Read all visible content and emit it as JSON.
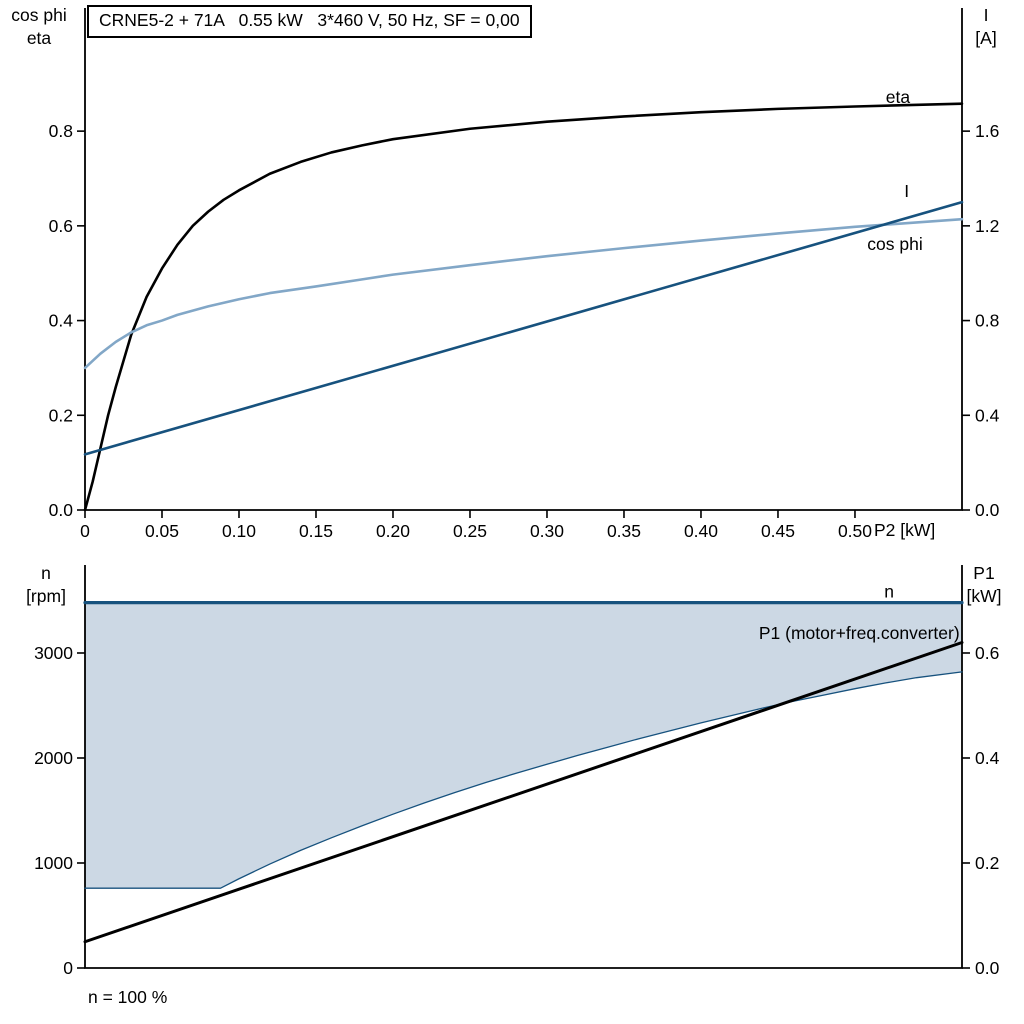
{
  "title": "CRNE5-2 + 71A   0.55 kW   3*460 V, 50 Hz, SF = 0,00",
  "footer_note": "n = 100 %",
  "colors": {
    "black": "#000000",
    "dark_blue": "#17527e",
    "light_blue": "#82a7c7",
    "band_fill": "#ccd8e4"
  },
  "labels": {
    "top_left_line1": "cos phi",
    "top_left_line2": "eta",
    "top_right_line1": "I",
    "top_right_line2": "[A]",
    "bottom_left_line1": "n",
    "bottom_left_line2": "[rpm]",
    "bottom_right_line1": "P1",
    "bottom_right_line2": "[kW]",
    "x_axis_label": "P2 [kW]"
  },
  "chart_data": [
    {
      "type": "line",
      "title": "Motor efficiency, power factor and current vs shaft power P2",
      "grid": false,
      "x_axis": {
        "label": "P2 [kW]",
        "range": [
          0,
          0.5695
        ],
        "ticks": [
          {
            "v": 0,
            "label": "0"
          },
          {
            "v": 0.05,
            "label": "0.05"
          },
          {
            "v": 0.1,
            "label": "0.10"
          },
          {
            "v": 0.15,
            "label": "0.15"
          },
          {
            "v": 0.2,
            "label": "0.20"
          },
          {
            "v": 0.25,
            "label": "0.25"
          },
          {
            "v": 0.3,
            "label": "0.30"
          },
          {
            "v": 0.35,
            "label": "0.35"
          },
          {
            "v": 0.4,
            "label": "0.40"
          },
          {
            "v": 0.45,
            "label": "0.45"
          },
          {
            "v": 0.5,
            "label": "0.50"
          }
        ]
      },
      "left_axis": {
        "label": "cos phi / eta",
        "range": [
          0,
          1.06
        ],
        "ticks": [
          {
            "v": 0.0,
            "label": "0.0"
          },
          {
            "v": 0.2,
            "label": "0.2"
          },
          {
            "v": 0.4,
            "label": "0.4"
          },
          {
            "v": 0.6,
            "label": "0.6"
          },
          {
            "v": 0.8,
            "label": "0.8"
          }
        ]
      },
      "right_axis": {
        "label": "I [A]",
        "range": [
          0,
          2.12
        ],
        "ticks": [
          {
            "v": 0.0,
            "label": "0.0"
          },
          {
            "v": 0.4,
            "label": "0.4"
          },
          {
            "v": 0.8,
            "label": "0.8"
          },
          {
            "v": 1.2,
            "label": "1.2"
          },
          {
            "v": 1.6,
            "label": "1.6"
          }
        ]
      },
      "series": [
        {
          "id": "eta",
          "name": "eta",
          "axis": "left",
          "color": "#000000",
          "width": 2.6,
          "label": {
            "x": 0.52,
            "y": 0.859,
            "anchor": "start"
          },
          "points": [
            [
              0,
              0
            ],
            [
              0.005,
              0.06
            ],
            [
              0.01,
              0.13
            ],
            [
              0.015,
              0.2
            ],
            [
              0.02,
              0.26
            ],
            [
              0.03,
              0.37
            ],
            [
              0.04,
              0.45
            ],
            [
              0.05,
              0.51
            ],
            [
              0.06,
              0.56
            ],
            [
              0.07,
              0.6
            ],
            [
              0.08,
              0.63
            ],
            [
              0.09,
              0.655
            ],
            [
              0.1,
              0.675
            ],
            [
              0.12,
              0.71
            ],
            [
              0.14,
              0.735
            ],
            [
              0.16,
              0.755
            ],
            [
              0.18,
              0.77
            ],
            [
              0.2,
              0.783
            ],
            [
              0.25,
              0.805
            ],
            [
              0.3,
              0.82
            ],
            [
              0.35,
              0.831
            ],
            [
              0.4,
              0.84
            ],
            [
              0.45,
              0.847
            ],
            [
              0.5,
              0.852
            ],
            [
              0.5695,
              0.858
            ]
          ]
        },
        {
          "id": "cos-phi",
          "name": "cos phi",
          "axis": "left",
          "color": "#82a7c7",
          "width": 2.6,
          "label": {
            "x": 0.508,
            "y": 0.549,
            "anchor": "start"
          },
          "points": [
            [
              0,
              0.3
            ],
            [
              0.01,
              0.33
            ],
            [
              0.02,
              0.355
            ],
            [
              0.03,
              0.375
            ],
            [
              0.04,
              0.39
            ],
            [
              0.05,
              0.4
            ],
            [
              0.06,
              0.412
            ],
            [
              0.08,
              0.43
            ],
            [
              0.1,
              0.445
            ],
            [
              0.12,
              0.458
            ],
            [
              0.15,
              0.472
            ],
            [
              0.18,
              0.487
            ],
            [
              0.2,
              0.497
            ],
            [
              0.25,
              0.517
            ],
            [
              0.3,
              0.536
            ],
            [
              0.35,
              0.553
            ],
            [
              0.4,
              0.569
            ],
            [
              0.45,
              0.584
            ],
            [
              0.5,
              0.598
            ],
            [
              0.5695,
              0.614
            ]
          ]
        },
        {
          "id": "current",
          "name": "I",
          "axis": "right",
          "color": "#17527e",
          "width": 2.6,
          "label": {
            "x": 0.532,
            "y": 1.322,
            "anchor": "start"
          },
          "points": [
            [
              0,
              0.235
            ],
            [
              0.5695,
              1.3
            ]
          ]
        }
      ]
    },
    {
      "type": "line",
      "title": "Speed range and input power P1 vs shaft power P2",
      "grid": false,
      "x_axis": {
        "label": "",
        "range": [
          0,
          0.5695
        ],
        "ticks": []
      },
      "left_axis": {
        "label": "n [rpm]",
        "range": [
          0,
          3838
        ],
        "ticks": [
          {
            "v": 0,
            "label": "0"
          },
          {
            "v": 1000,
            "label": "1000"
          },
          {
            "v": 2000,
            "label": "2000"
          },
          {
            "v": 3000,
            "label": "3000"
          }
        ]
      },
      "right_axis": {
        "label": "P1 [kW]",
        "range": [
          0,
          0.7676
        ],
        "ticks": [
          {
            "v": 0.0,
            "label": "0.0"
          },
          {
            "v": 0.2,
            "label": "0.2"
          },
          {
            "v": 0.4,
            "label": "0.4"
          },
          {
            "v": 0.6,
            "label": "0.6"
          }
        ]
      },
      "band": {
        "axis": "left",
        "fill": "#ccd8e4",
        "upper": [
          [
            0,
            3480
          ],
          [
            0.5695,
            3480
          ]
        ],
        "lower": [
          [
            0,
            760
          ],
          [
            0.088,
            760
          ],
          [
            0.1,
            850
          ],
          [
            0.12,
            990
          ],
          [
            0.14,
            1120
          ],
          [
            0.16,
            1240
          ],
          [
            0.18,
            1355
          ],
          [
            0.2,
            1465
          ],
          [
            0.22,
            1570
          ],
          [
            0.24,
            1670
          ],
          [
            0.26,
            1765
          ],
          [
            0.28,
            1855
          ],
          [
            0.3,
            1940
          ],
          [
            0.32,
            2025
          ],
          [
            0.34,
            2105
          ],
          [
            0.36,
            2185
          ],
          [
            0.38,
            2260
          ],
          [
            0.4,
            2335
          ],
          [
            0.42,
            2405
          ],
          [
            0.44,
            2475
          ],
          [
            0.46,
            2540
          ],
          [
            0.48,
            2600
          ],
          [
            0.5,
            2660
          ],
          [
            0.52,
            2715
          ],
          [
            0.54,
            2765
          ],
          [
            0.5695,
            2820
          ]
        ]
      },
      "series": [
        {
          "id": "speed-lower-limit",
          "name": "",
          "axis": "left",
          "color": "#17527e",
          "width": 1.3,
          "points": [
            [
              0,
              760
            ],
            [
              0.088,
              760
            ],
            [
              0.1,
              850
            ],
            [
              0.12,
              990
            ],
            [
              0.14,
              1120
            ],
            [
              0.16,
              1240
            ],
            [
              0.18,
              1355
            ],
            [
              0.2,
              1465
            ],
            [
              0.22,
              1570
            ],
            [
              0.24,
              1670
            ],
            [
              0.26,
              1765
            ],
            [
              0.28,
              1855
            ],
            [
              0.3,
              1940
            ],
            [
              0.32,
              2025
            ],
            [
              0.34,
              2105
            ],
            [
              0.36,
              2185
            ],
            [
              0.38,
              2260
            ],
            [
              0.4,
              2335
            ],
            [
              0.42,
              2405
            ],
            [
              0.44,
              2475
            ],
            [
              0.46,
              2540
            ],
            [
              0.48,
              2600
            ],
            [
              0.5,
              2660
            ],
            [
              0.52,
              2715
            ],
            [
              0.54,
              2765
            ],
            [
              0.5695,
              2820
            ]
          ]
        },
        {
          "id": "speed",
          "name": "n",
          "axis": "left",
          "color": "#17527e",
          "width": 3.2,
          "label": {
            "x": 0.519,
            "y": 3530,
            "anchor": "start"
          },
          "points": [
            [
              0,
              3480
            ],
            [
              0.5695,
              3480
            ]
          ]
        },
        {
          "id": "p1",
          "name": "P1 (motor+freq.converter)",
          "axis": "right",
          "color": "#000000",
          "width": 3,
          "label": {
            "x": 0.568,
            "y": 0.6266,
            "anchor": "end"
          },
          "points": [
            [
              0,
              0.05
            ],
            [
              0.5695,
              0.62
            ]
          ]
        }
      ]
    }
  ]
}
